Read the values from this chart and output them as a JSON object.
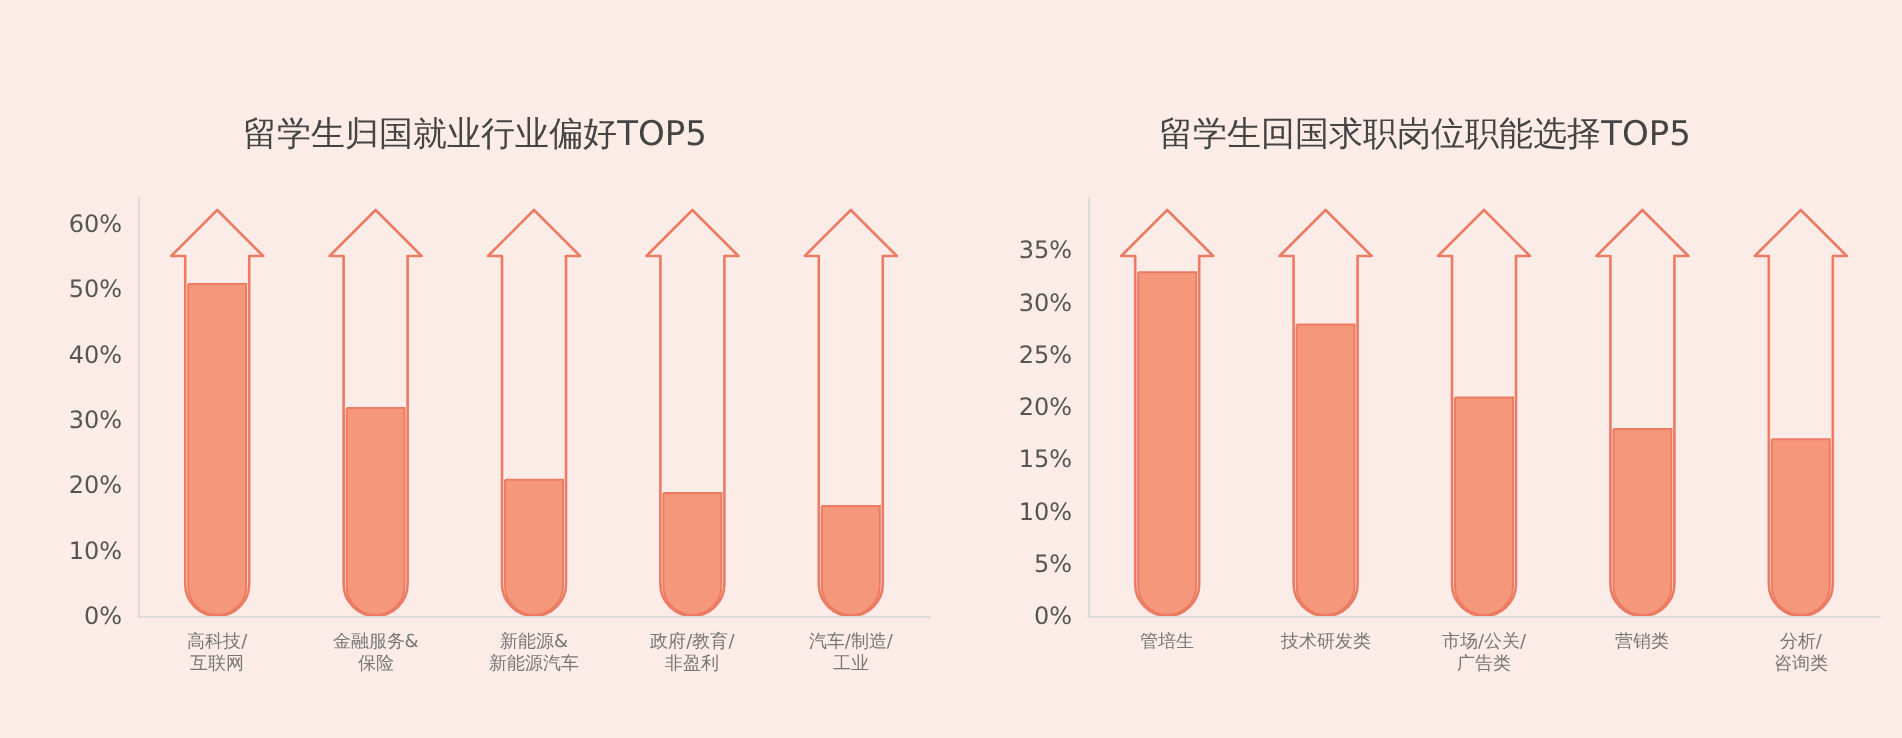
{
  "chart_data": [
    {
      "type": "bar",
      "title": "留学生归国就业行业偏好TOP5",
      "categories": [
        "高科技/\n互联网",
        "金融服务&\n保险",
        "新能源&\n新能源汽车",
        "政府/教育/\n非盈利",
        "汽车/制造/\n工业"
      ],
      "values": [
        51,
        32,
        21,
        19,
        17
      ],
      "color": "#f4977b",
      "ylim": [
        0,
        64
      ],
      "yticks": [
        {
          "value": 0,
          "label": "0%"
        },
        {
          "value": 10,
          "label": "10%"
        },
        {
          "value": 20,
          "label": "20%"
        },
        {
          "value": 30,
          "label": "30%"
        },
        {
          "value": 40,
          "label": "40%"
        },
        {
          "value": 50,
          "label": "50%"
        },
        {
          "value": 60,
          "label": "60%"
        }
      ],
      "grid": false
    },
    {
      "type": "bar",
      "title": "留学生回国求职岗位职能选择TOP5",
      "categories": [
        "管培生",
        "技术研发类",
        "市场/公关/\n广告类",
        "营销类",
        "分析/\n咨询类"
      ],
      "values": [
        33,
        28,
        21,
        18,
        17
      ],
      "color": "#f4977b",
      "ylim": [
        0,
        40
      ],
      "yticks": [
        {
          "value": 0,
          "label": "0%"
        },
        {
          "value": 5,
          "label": "5%"
        },
        {
          "value": 10,
          "label": "10%"
        },
        {
          "value": 15,
          "label": "15%"
        },
        {
          "value": 20,
          "label": "20%"
        },
        {
          "value": 25,
          "label": "25%"
        },
        {
          "value": 30,
          "label": "30%"
        },
        {
          "value": 35,
          "label": "35%"
        }
      ],
      "grid": false
    }
  ]
}
